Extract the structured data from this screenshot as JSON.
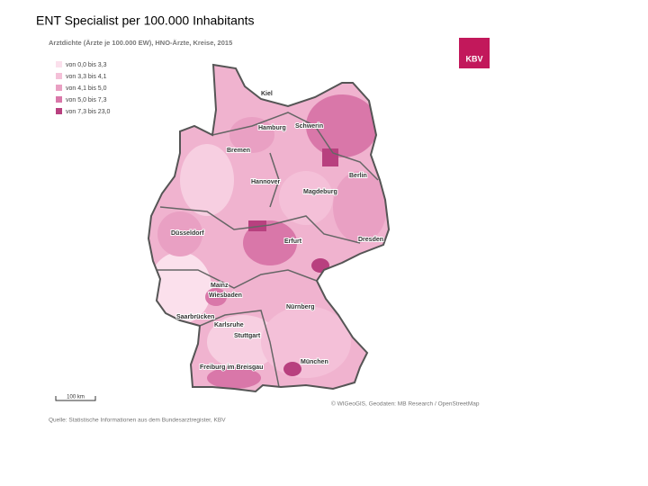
{
  "title": "ENT Specialist per 100.000 Inhabitants",
  "map": {
    "heading": "Arztdichte (Ärzte je 100.000 EW), HNO-Ärzte, Kreise, 2015",
    "legend": [
      {
        "label": "von 0,0 bis 3,3",
        "color": "#fbe0ec"
      },
      {
        "label": "von 3,3 bis 4,1",
        "color": "#f4c0d8"
      },
      {
        "label": "von 4,1 bis 5,0",
        "color": "#e9a0c3"
      },
      {
        "label": "von 5,0 bis 7,3",
        "color": "#d977a9"
      },
      {
        "label": "von 7,3 bis 23,0",
        "color": "#b8407f"
      }
    ],
    "cities": [
      "Kiel",
      "Hamburg",
      "Schwerin",
      "Bremen",
      "Berlin",
      "Hannover",
      "Magdeburg",
      "Düsseldorf",
      "Erfurt",
      "Dresden",
      "Mainz",
      "Wiesbaden",
      "Nürnberg",
      "Saarbrücken",
      "Karlsruhe",
      "Stuttgart",
      "Freiburg im Breisgau",
      "München"
    ],
    "scale": "100 km",
    "credit": "© WIGeoGIS, Geodaten: MB Research / OpenStreetMap",
    "source": "Quelle: Statistische Informationen aus dem Bundesarztregister, KBV",
    "logo": "KBV"
  }
}
